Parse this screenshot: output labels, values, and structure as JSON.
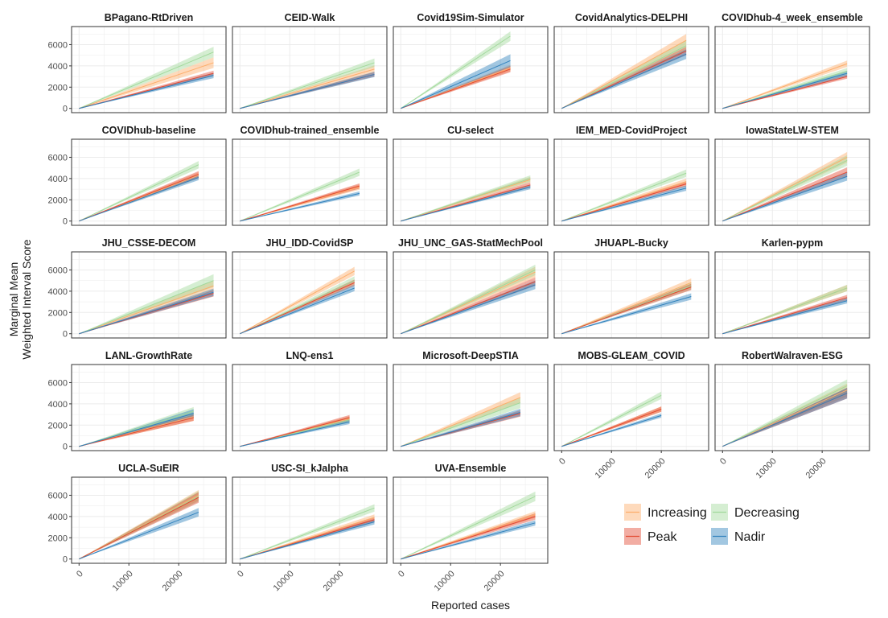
{
  "colors": {
    "Increasing": "#fdae6b",
    "Peak": "#e34a33",
    "Decreasing": "#a1d99b",
    "Nadir": "#3182bd",
    "grid": "#ebebeb",
    "panel_border": "#333333"
  },
  "chart_data": {
    "type": "line",
    "xlabel": "Reported cases",
    "ylabel_lines": [
      "Marginal Mean",
      "Weighted Interval Score"
    ],
    "ylim": [
      -400,
      7700
    ],
    "xlim": [
      -1500,
      29500
    ],
    "y_ticks": [
      0,
      2000,
      4000,
      6000
    ],
    "x_ticks": [
      0,
      10000,
      20000
    ],
    "grid": true,
    "legend_position": "bottom-right",
    "legend": [
      {
        "key": "Increasing",
        "label": "Increasing"
      },
      {
        "key": "Decreasing",
        "label": "Decreasing"
      },
      {
        "key": "Peak",
        "label": "Peak"
      },
      {
        "key": "Nadir",
        "label": "Nadir"
      }
    ],
    "band_shown": "ribbon",
    "panels": [
      {
        "title": "BPagano-RtDriven",
        "x_max": 27000,
        "series": {
          "Increasing": [
            4300,
            500
          ],
          "Peak": [
            3300,
            250
          ],
          "Decreasing": [
            5300,
            500
          ],
          "Nadir": [
            3100,
            250
          ]
        }
      },
      {
        "title": "CEID-Walk",
        "x_max": 27000,
        "series": {
          "Increasing": [
            3700,
            350
          ],
          "Peak": [
            3200,
            200
          ],
          "Decreasing": [
            4300,
            400
          ],
          "Nadir": [
            3200,
            250
          ]
        }
      },
      {
        "title": "Covid19Sim-Simulator",
        "x_max": 22000,
        "series": {
          "Increasing": [
            3800,
            300
          ],
          "Peak": [
            3700,
            300
          ],
          "Decreasing": [
            6800,
            450
          ],
          "Nadir": [
            4500,
            600
          ]
        }
      },
      {
        "title": "CovidAnalytics-DELPHI",
        "x_max": 25000,
        "series": {
          "Increasing": [
            6400,
            600
          ],
          "Peak": [
            5400,
            400
          ],
          "Decreasing": [
            5900,
            550
          ],
          "Nadir": [
            5100,
            450
          ]
        }
      },
      {
        "title": "COVIDhub-4_week_ensemble",
        "x_max": 25000,
        "series": {
          "Increasing": [
            4200,
            300
          ],
          "Peak": [
            3000,
            200
          ],
          "Decreasing": [
            3500,
            300
          ],
          "Nadir": [
            3300,
            250
          ]
        }
      },
      {
        "title": "COVIDhub-baseline",
        "x_max": 24000,
        "series": {
          "Increasing": [
            4300,
            300
          ],
          "Peak": [
            4400,
            300
          ],
          "Decreasing": [
            5300,
            350
          ],
          "Nadir": [
            4100,
            250
          ]
        }
      },
      {
        "title": "COVIDhub-trained_ensemble",
        "x_max": 24000,
        "series": {
          "Increasing": [
            3200,
            250
          ],
          "Peak": [
            3300,
            250
          ],
          "Decreasing": [
            4600,
            350
          ],
          "Nadir": [
            2600,
            200
          ]
        }
      },
      {
        "title": "CU-select",
        "x_max": 26000,
        "series": {
          "Increasing": [
            3900,
            250
          ],
          "Peak": [
            3400,
            250
          ],
          "Decreasing": [
            4000,
            300
          ],
          "Nadir": [
            3200,
            200
          ]
        }
      },
      {
        "title": "IEM_MED-CovidProject",
        "x_max": 25000,
        "series": {
          "Increasing": [
            3700,
            300
          ],
          "Peak": [
            3500,
            250
          ],
          "Decreasing": [
            4500,
            350
          ],
          "Nadir": [
            3100,
            250
          ]
        }
      },
      {
        "title": "IowaStateLW-STEM",
        "x_max": 25000,
        "series": {
          "Increasing": [
            6000,
            500
          ],
          "Peak": [
            4600,
            450
          ],
          "Decreasing": [
            5700,
            500
          ],
          "Nadir": [
            4200,
            400
          ]
        }
      },
      {
        "title": "JHU_CSSE-DECOM",
        "x_max": 27000,
        "series": {
          "Increasing": [
            4500,
            500
          ],
          "Peak": [
            3800,
            300
          ],
          "Decreasing": [
            5000,
            600
          ],
          "Nadir": [
            3900,
            350
          ]
        }
      },
      {
        "title": "JHU_IDD-CovidSP",
        "x_max": 23000,
        "series": {
          "Increasing": [
            5900,
            400
          ],
          "Peak": [
            4800,
            300
          ],
          "Decreasing": [
            5000,
            400
          ],
          "Nadir": [
            4300,
            300
          ]
        }
      },
      {
        "title": "JHU_UNC_GAS-StatMechPool",
        "x_max": 27000,
        "series": {
          "Increasing": [
            5800,
            500
          ],
          "Peak": [
            4900,
            400
          ],
          "Decreasing": [
            6000,
            500
          ],
          "Nadir": [
            4600,
            400
          ]
        }
      },
      {
        "title": "JHUAPL-Bucky",
        "x_max": 26000,
        "series": {
          "Increasing": [
            4800,
            400
          ],
          "Peak": [
            4400,
            300
          ],
          "Decreasing": [
            4500,
            350
          ],
          "Nadir": [
            3500,
            300
          ]
        }
      },
      {
        "title": "Karlen-pypm",
        "x_max": 25000,
        "series": {
          "Increasing": [
            4300,
            300
          ],
          "Peak": [
            3400,
            250
          ],
          "Decreasing": [
            4300,
            300
          ],
          "Nadir": [
            3100,
            250
          ]
        }
      },
      {
        "title": "LANL-GrowthRate",
        "x_max": 23000,
        "series": {
          "Increasing": [
            2800,
            400
          ],
          "Peak": [
            2700,
            300
          ],
          "Decreasing": [
            3300,
            400
          ],
          "Nadir": [
            3100,
            400
          ]
        }
      },
      {
        "title": "LNQ-ens1",
        "x_max": 22000,
        "series": {
          "Increasing": [
            2600,
            250
          ],
          "Peak": [
            2700,
            250
          ],
          "Decreasing": [
            2500,
            250
          ],
          "Nadir": [
            2300,
            200
          ]
        }
      },
      {
        "title": "Microsoft-DeepSTIA",
        "x_max": 24000,
        "series": {
          "Increasing": [
            4600,
            500
          ],
          "Peak": [
            3100,
            300
          ],
          "Decreasing": [
            4100,
            500
          ],
          "Nadir": [
            3200,
            350
          ]
        }
      },
      {
        "title": "MOBS-GLEAM_COVID",
        "x_max": 20000,
        "series": {
          "Increasing": [
            3500,
            250
          ],
          "Peak": [
            3500,
            250
          ],
          "Decreasing": [
            4800,
            350
          ],
          "Nadir": [
            2900,
            200
          ]
        }
      },
      {
        "title": "RobertWalraven-ESG",
        "x_max": 25000,
        "series": {
          "Increasing": [
            5300,
            600
          ],
          "Peak": [
            5000,
            500
          ],
          "Decreasing": [
            5700,
            600
          ],
          "Nadir": [
            5000,
            500
          ]
        }
      },
      {
        "title": "UCLA-SuEIR",
        "x_max": 24000,
        "series": {
          "Increasing": [
            6000,
            500
          ],
          "Peak": [
            5800,
            500
          ],
          "Decreasing": [
            5900,
            500
          ],
          "Nadir": [
            4400,
            400
          ]
        }
      },
      {
        "title": "USC-SI_kJalpha",
        "x_max": 27000,
        "series": {
          "Increasing": [
            3900,
            300
          ],
          "Peak": [
            3700,
            250
          ],
          "Decreasing": [
            4800,
            350
          ],
          "Nadir": [
            3500,
            250
          ]
        }
      },
      {
        "title": "UVA-Ensemble",
        "x_max": 27000,
        "series": {
          "Increasing": [
            4200,
            300
          ],
          "Peak": [
            4000,
            300
          ],
          "Decreasing": [
            5900,
            450
          ],
          "Nadir": [
            3400,
            250
          ]
        }
      }
    ]
  }
}
